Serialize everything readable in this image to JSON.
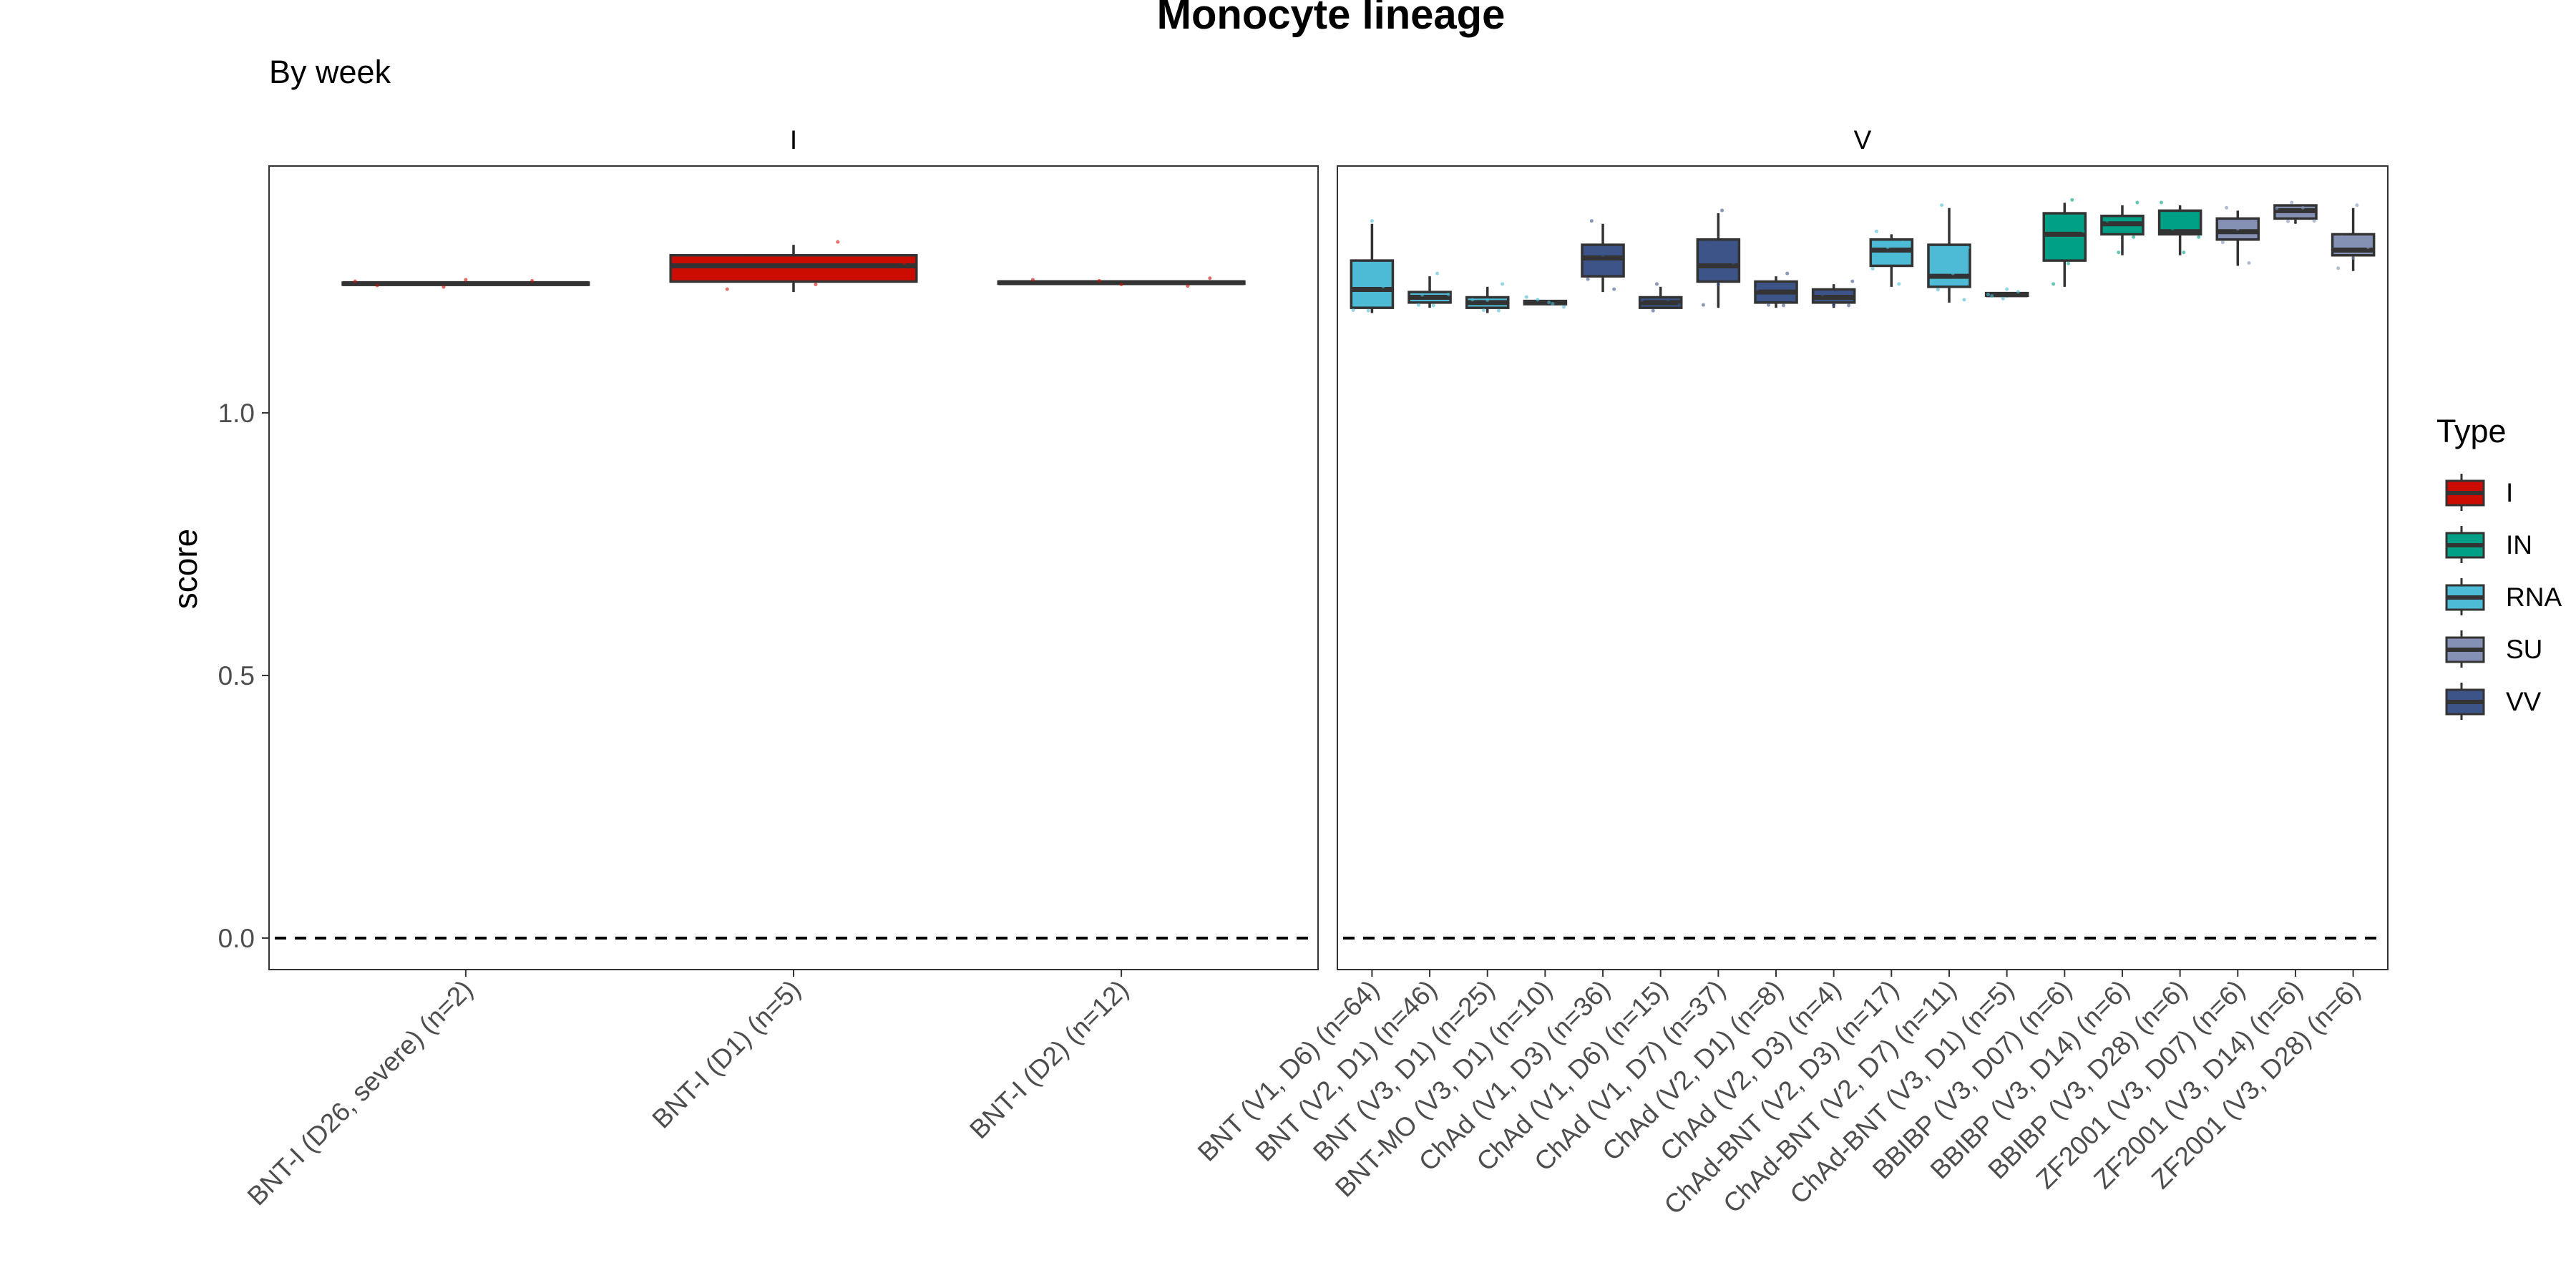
{
  "chart_data": {
    "type": "box",
    "title": "Monocyte lineage",
    "subtitle": "By week",
    "ylabel": "score",
    "ylim": [
      -0.06,
      1.47
    ],
    "yticks": [
      0.0,
      0.5,
      1.0
    ],
    "reference_line": 0,
    "legend": {
      "title": "Type",
      "position": "right",
      "items": [
        {
          "name": "I",
          "color": "#cc0c00"
        },
        {
          "name": "IN",
          "color": "#00a087"
        },
        {
          "name": "RNA",
          "color": "#4dbbd5"
        },
        {
          "name": "SU",
          "color": "#8491b4"
        },
        {
          "name": "VV",
          "color": "#3c5488"
        }
      ]
    },
    "panels": [
      {
        "strip": "I",
        "categories": [
          {
            "label": "BNT-I (D26, severe) (n=2)",
            "type": "I",
            "lo": 1.245,
            "q1": 1.245,
            "med": 1.246,
            "q3": 1.248,
            "hi": 1.248
          },
          {
            "label": "BNT-I (D1) (n=5)",
            "type": "I",
            "lo": 1.23,
            "q1": 1.25,
            "med": 1.28,
            "q3": 1.3,
            "hi": 1.32
          },
          {
            "label": "BNT-I (D2) (n=12)",
            "type": "I",
            "lo": 1.246,
            "q1": 1.247,
            "med": 1.248,
            "q3": 1.25,
            "hi": 1.251
          }
        ]
      },
      {
        "strip": "V",
        "categories": [
          {
            "label": "BNT (V1, D6) (n=64)",
            "type": "RNA",
            "lo": 1.19,
            "q1": 1.2,
            "med": 1.235,
            "q3": 1.29,
            "hi": 1.36
          },
          {
            "label": "BNT (V2, D1) (n=46)",
            "type": "RNA",
            "lo": 1.2,
            "q1": 1.21,
            "med": 1.22,
            "q3": 1.23,
            "hi": 1.26
          },
          {
            "label": "BNT (V3, D1) (n=25)",
            "type": "RNA",
            "lo": 1.19,
            "q1": 1.2,
            "med": 1.21,
            "q3": 1.22,
            "hi": 1.24
          },
          {
            "label": "BNT-MO (V3, D1) (n=10)",
            "type": "RNA",
            "lo": 1.205,
            "q1": 1.207,
            "med": 1.21,
            "q3": 1.213,
            "hi": 1.215
          },
          {
            "label": "ChAd (V1, D3) (n=36)",
            "type": "VV",
            "lo": 1.23,
            "q1": 1.26,
            "med": 1.295,
            "q3": 1.32,
            "hi": 1.36
          },
          {
            "label": "ChAd (V1, D6) (n=15)",
            "type": "VV",
            "lo": 1.2,
            "q1": 1.2,
            "med": 1.21,
            "q3": 1.22,
            "hi": 1.24
          },
          {
            "label": "ChAd (V1, D7) (n=37)",
            "type": "VV",
            "lo": 1.2,
            "q1": 1.25,
            "med": 1.28,
            "q3": 1.33,
            "hi": 1.38
          },
          {
            "label": "ChAd (V2, D1) (n=8)",
            "type": "VV",
            "lo": 1.2,
            "q1": 1.21,
            "med": 1.23,
            "q3": 1.25,
            "hi": 1.26
          },
          {
            "label": "ChAd (V2, D3) (n=4)",
            "type": "VV",
            "lo": 1.2,
            "q1": 1.21,
            "med": 1.22,
            "q3": 1.235,
            "hi": 1.245
          },
          {
            "label": "ChAd-BNT (V2, D3) (n=17)",
            "type": "RNA",
            "lo": 1.24,
            "q1": 1.28,
            "med": 1.31,
            "q3": 1.33,
            "hi": 1.34
          },
          {
            "label": "ChAd-BNT (V2, D7) (n=11)",
            "type": "RNA",
            "lo": 1.21,
            "q1": 1.24,
            "med": 1.26,
            "q3": 1.32,
            "hi": 1.39
          },
          {
            "label": "ChAd-BNT (V3, D1) (n=5)",
            "type": "RNA",
            "lo": 1.22,
            "q1": 1.223,
            "med": 1.225,
            "q3": 1.228,
            "hi": 1.23
          },
          {
            "label": "BBIBP (V3, D07) (n=6)",
            "type": "IN",
            "lo": 1.24,
            "q1": 1.29,
            "med": 1.34,
            "q3": 1.38,
            "hi": 1.4
          },
          {
            "label": "BBIBP (V3, D14) (n=6)",
            "type": "IN",
            "lo": 1.3,
            "q1": 1.34,
            "med": 1.36,
            "q3": 1.375,
            "hi": 1.395
          },
          {
            "label": "BBIBP (V3, D28) (n=6)",
            "type": "IN",
            "lo": 1.3,
            "q1": 1.34,
            "med": 1.345,
            "q3": 1.385,
            "hi": 1.395
          },
          {
            "label": "ZF2001 (V3, D07) (n=6)",
            "type": "SU",
            "lo": 1.28,
            "q1": 1.33,
            "med": 1.345,
            "q3": 1.37,
            "hi": 1.385
          },
          {
            "label": "ZF2001 (V3, D14) (n=6)",
            "type": "SU",
            "lo": 1.36,
            "q1": 1.37,
            "med": 1.385,
            "q3": 1.395,
            "hi": 1.395
          },
          {
            "label": "ZF2001 (V3, D28) (n=6)",
            "type": "SU",
            "lo": 1.27,
            "q1": 1.3,
            "med": 1.31,
            "q3": 1.34,
            "hi": 1.39
          }
        ]
      }
    ]
  }
}
